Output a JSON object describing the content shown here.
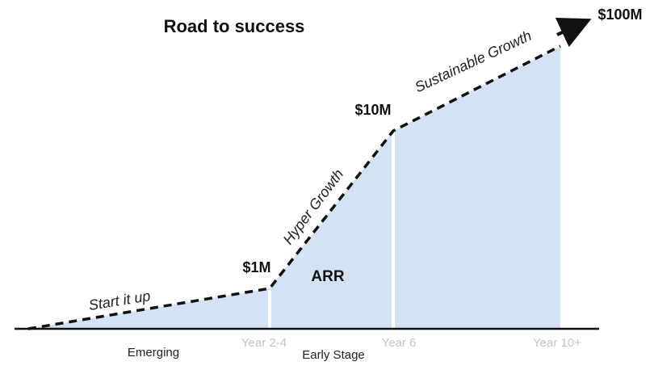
{
  "chart_data": {
    "type": "area",
    "title": "Road to success",
    "area_label": "ARR",
    "x": [
      "",
      "Year 2-4",
      "Year 6",
      "Year 10+"
    ],
    "value_labels": [
      "",
      "$1M",
      "$10M",
      "$100M"
    ],
    "series": [
      {
        "values": [
          0,
          1,
          10,
          100
        ]
      }
    ],
    "phase_labels": [
      "Start it up",
      "Hyper Growth",
      "Sustainable Growth"
    ],
    "stage_labels": [
      "Emerging",
      "Early Stage"
    ],
    "colors": {
      "fill": "#d3e2f4",
      "line": "#111111",
      "divider": "#ffffff",
      "tick_text": "#bfc6cf"
    },
    "grid": false,
    "legend": "none"
  }
}
